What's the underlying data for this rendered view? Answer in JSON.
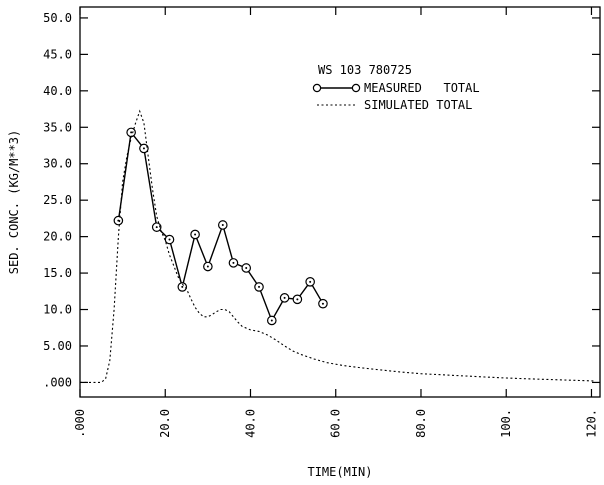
{
  "chart_data": {
    "type": "line",
    "title": "",
    "xlabel": "TIME(MIN)",
    "ylabel": "SED. CONC. (KG/M**3)",
    "xlim": [
      0,
      122
    ],
    "ylim": [
      -2,
      51.5
    ],
    "grid": false,
    "x_ticks": [
      0,
      20,
      40,
      60,
      80,
      100,
      120
    ],
    "x_tick_labels": [
      ".000",
      "20.0",
      "40.0",
      "60.0",
      "80.0",
      "100.",
      "120."
    ],
    "y_ticks": [
      0,
      5,
      10,
      15,
      20,
      25,
      30,
      35,
      40,
      45,
      50
    ],
    "y_tick_labels": [
      ".000",
      "5.00",
      "10.0",
      "15.0",
      "20.0",
      "25.0",
      "30.0",
      "35.0",
      "40.0",
      "45.0",
      "50.0"
    ],
    "legend": {
      "placement": "top-right",
      "header": "WS 103 780725",
      "entries": [
        "MEASURED   TOTAL",
        "SIMULATED TOTAL"
      ]
    },
    "series": [
      {
        "name": "MEASURED   TOTAL",
        "style": "solid-with-circle-markers",
        "x": [
          9,
          12,
          15,
          18,
          21,
          24,
          27,
          30,
          33.5,
          36,
          39,
          42,
          45,
          48,
          51,
          54,
          57
        ],
        "y": [
          22.2,
          34.3,
          32.1,
          21.3,
          19.6,
          13.1,
          20.3,
          15.9,
          21.6,
          16.4,
          15.7,
          13.1,
          8.5,
          11.6,
          11.4,
          13.8,
          10.8
        ]
      },
      {
        "name": "SIMULATED TOTAL",
        "style": "dotted",
        "x": [
          0,
          3,
          5,
          6,
          7,
          8,
          9,
          10,
          11,
          12,
          13,
          14,
          15,
          16,
          17,
          18,
          19,
          20,
          21,
          22,
          23,
          24,
          25,
          26,
          27,
          28,
          29,
          30,
          31,
          32,
          33,
          34,
          35,
          36,
          37,
          38,
          40,
          42,
          44,
          46,
          48,
          50,
          52,
          55,
          58,
          62,
          66,
          70,
          75,
          80,
          85,
          90,
          95,
          100,
          105,
          110,
          115,
          118,
          121
        ],
        "y": [
          0,
          0,
          0,
          0.5,
          3,
          10,
          20,
          27.5,
          31,
          33.5,
          35.5,
          37.2,
          35.6,
          31,
          26.5,
          22.8,
          20.8,
          19.5,
          17.5,
          16,
          14.5,
          13.5,
          12.8,
          11.5,
          10.3,
          9.5,
          9,
          9,
          9.3,
          9.7,
          10,
          10,
          9.7,
          9,
          8.3,
          7.7,
          7.2,
          7,
          6.5,
          5.8,
          5,
          4.3,
          3.8,
          3.2,
          2.7,
          2.3,
          2.0,
          1.75,
          1.45,
          1.2,
          1.05,
          0.9,
          0.75,
          0.6,
          0.5,
          0.4,
          0.3,
          0.25,
          0.2
        ]
      }
    ]
  }
}
